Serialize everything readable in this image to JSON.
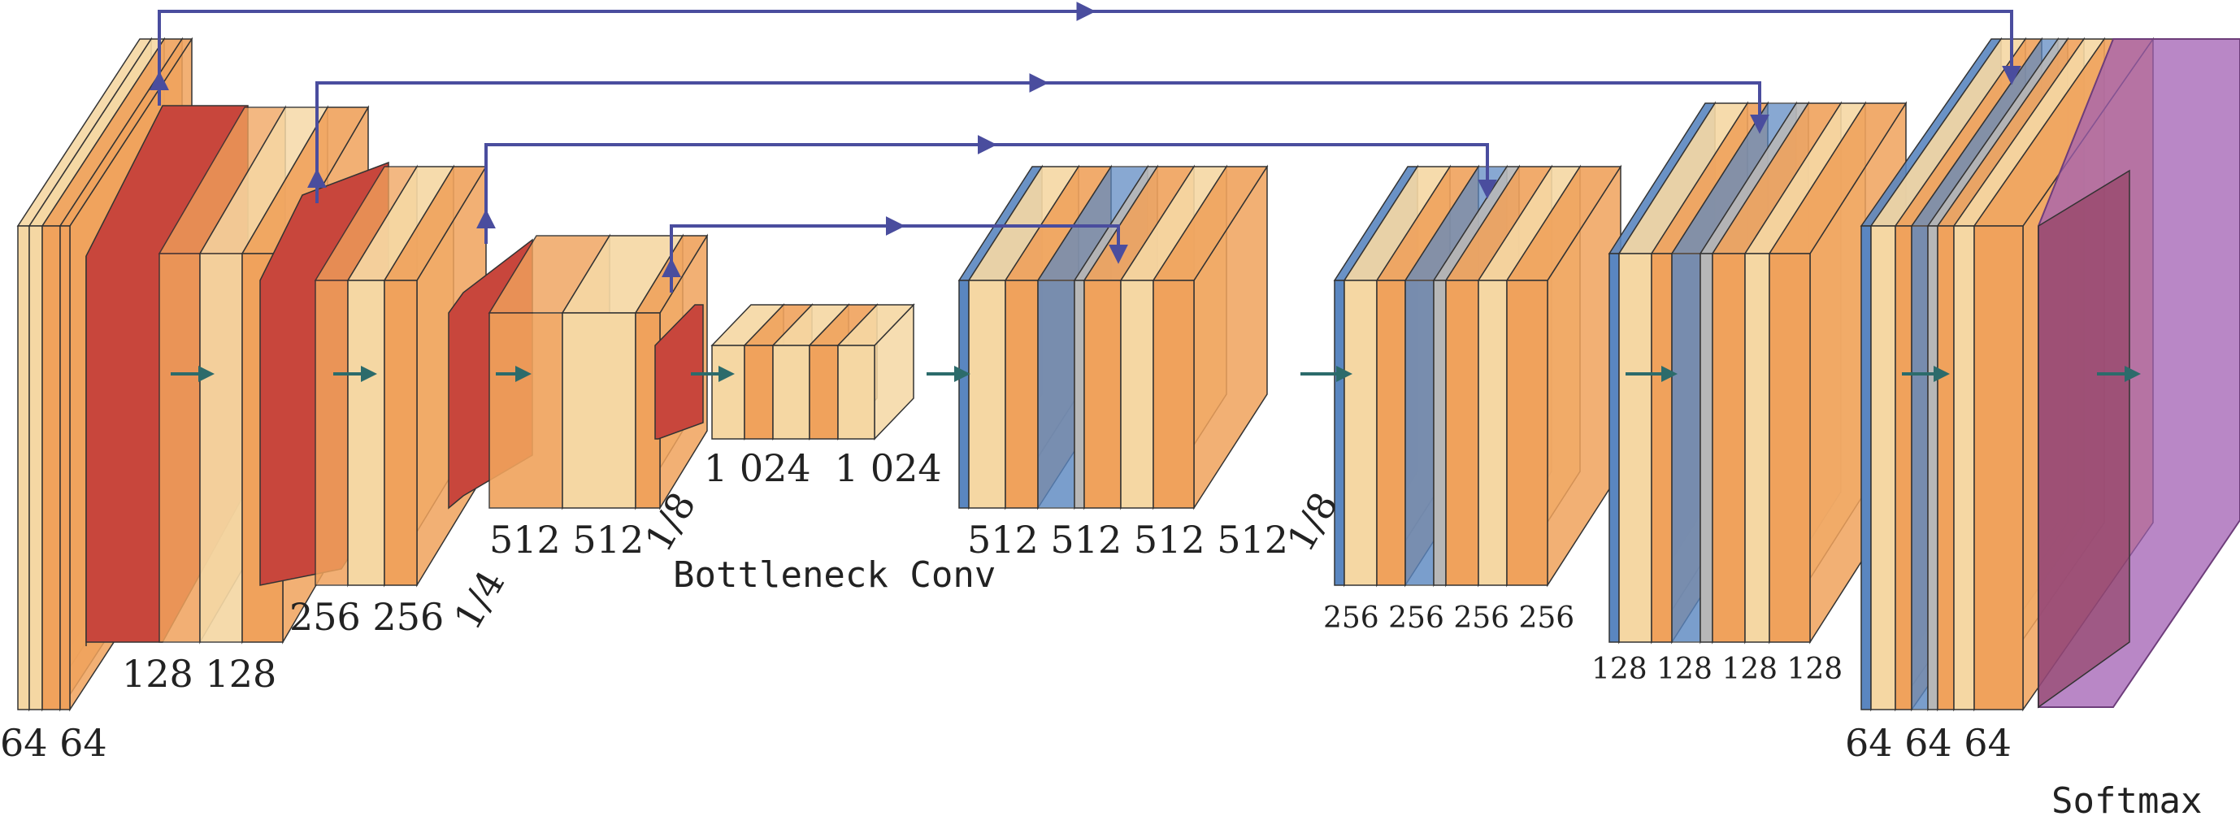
{
  "colors": {
    "light_orange": "#f5d7a3",
    "orange": "#f0a25c",
    "red": "#c8463c",
    "blue": "#5a86c0",
    "gray": "#b7b7b7",
    "purple": "#a15fb3",
    "arrow": "#4a4d9e",
    "flow_arrow": "#2c6b6b"
  },
  "labels": {
    "enc1": "64 64",
    "enc2": "128 128",
    "enc3": "256 256",
    "enc3_scale": "1/4",
    "enc4": "512 512",
    "enc4_scale": "1/8",
    "bottleneck": "1 024  1 024",
    "bottleneck_title": "Bottleneck Conv",
    "dec4": "512 512 512 512",
    "dec4_scale": "1/8",
    "dec3": "256 256 256 256",
    "dec2": "128 128 128 128",
    "dec1": "64 64 64",
    "softmax": "Softmax"
  }
}
